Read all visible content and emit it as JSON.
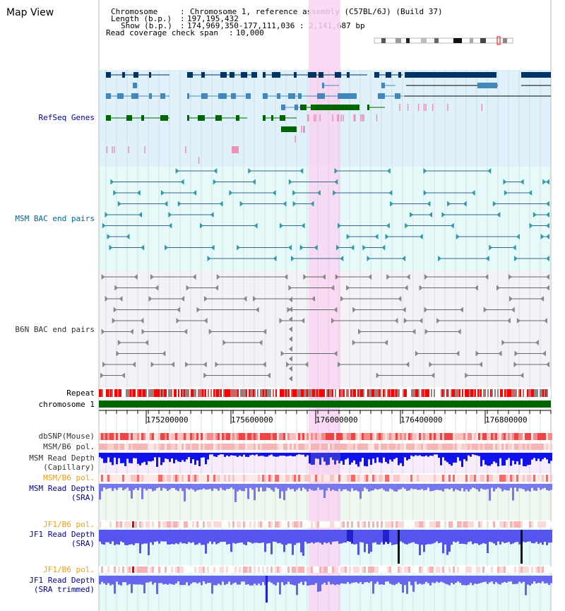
{
  "page": {
    "title": "Map View"
  },
  "header": {
    "chromosome_label": "Chromosome",
    "chromosome_value": "Chromosome 1, reference assembly (C57BL/6J) (Build 37)",
    "length_label": "Length (b.p.)",
    "length_value": "197,195,432",
    "show_label": "Show (b.p.)",
    "show_value": "174,969,350-177,111,036 : 2,141,687 bp",
    "coverage_label": "Read coverage check span",
    "coverage_value": "10,000"
  },
  "tracks": {
    "refseq": "RefSeq Genes",
    "msm_bac": "MSM BAC end pairs",
    "b6n_bac": "B6N BAC end pairs",
    "repeat": "Repeat",
    "chromosome": "chromosome 1",
    "dbsnp": "dbSNP(Mouse)",
    "msm_pol1": "MSM/B6 pol.",
    "msm_depth_cap_1": "MSM Read Depth",
    "msm_depth_cap_2": "(Capillary)",
    "msm_pol2": "MSM/B6 pol.",
    "msm_depth_sra_1": "MSM Read Depth",
    "msm_depth_sra_2": "(SRA)",
    "jf1_pol1": "JF1/B6 pol.",
    "jf1_depth_sra_1": "JF1 Read Depth",
    "jf1_depth_sra_2": "(SRA)",
    "jf1_pol2": "JF1/B6 pol.",
    "jf1_depth_trim_1": "JF1 Read Depth",
    "jf1_depth_trim_2": "(SRA trimmed)"
  },
  "ruler": {
    "ticks": [
      "175200000",
      "175600000",
      "176000000",
      "176400000",
      "176800000"
    ]
  },
  "colors": {
    "refseq_bg": "#dff2fb",
    "bac_bg": "#e6fafa",
    "highlight": "#f9d4f2",
    "chrom_bar": "#006600",
    "gene_dark": "#003366",
    "gene_mid": "#4488bb",
    "gene_green": "#006600"
  }
}
